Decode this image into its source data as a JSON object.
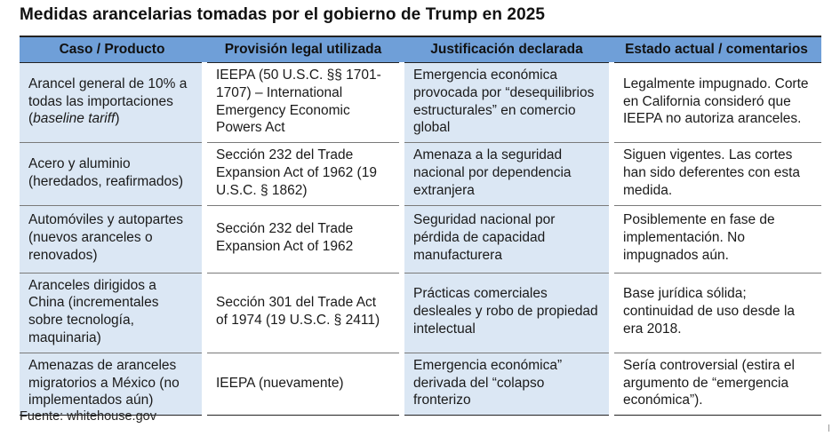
{
  "title": "Medidas arancelarias tomadas por el gobierno de Trump en 2025",
  "columns": [
    "Caso / Producto",
    "Provisión legal utilizada",
    "Justificación declarada",
    "Estado actual / comentarios"
  ],
  "rows": [
    {
      "caso": "Arancel general de 10% a todas las importaciones",
      "caso_italic": "baseline tariff",
      "provision": "IEEPA (50 U.S.C. §§ 1701-1707) – International Emergency Economic Powers Act",
      "justificacion": "Emergencia económica provocada por “desequilibrios estructurales” en comercio global",
      "estado": "Legalmente impugnado. Corte en California consideró que IEEPA no autoriza aranceles."
    },
    {
      "caso": "Acero y aluminio (heredados, reafirmados)",
      "provision": "Sección 232 del Trade Expansion Act of 1962 (19 U.S.C. § 1862)",
      "justificacion": "Amenaza a la seguridad nacional por dependencia extranjera",
      "estado": "Siguen vigentes. Las cortes han sido deferentes con esta medida."
    },
    {
      "caso": "Automóviles y autopartes (nuevos aranceles o renovados)",
      "provision": "Sección 232 del Trade Expansion Act of 1962",
      "justificacion": "Seguridad nacional por pérdida de capacidad manufacturera",
      "estado": "Posiblemente en fase de implementación. No impugnados aún."
    },
    {
      "caso": "Aranceles dirigidos a China (incrementales sobre tecnología, maquinaria)",
      "provision": "Sección 301 del Trade Act of 1974 (19 U.S.C. § 2411)",
      "justificacion": "Prácticas comerciales desleales y robo de propiedad intelectual",
      "estado": "Base jurídica sólida; continuidad de uso desde la era 2018."
    },
    {
      "caso": "Amenazas de aranceles migratorios a México (no implementados aún)",
      "provision": "IEEPA (nuevamente)",
      "justificacion": "Emergencia económica” derivada del “colapso fronterizo",
      "estado": "Sería controversial (estira el argumento de “emergencia económica”)."
    }
  ],
  "source": "Fuente: whitehouse.gov",
  "colors": {
    "header_bg": "#6f9fd8",
    "shade_bg": "#dbe7f4"
  }
}
